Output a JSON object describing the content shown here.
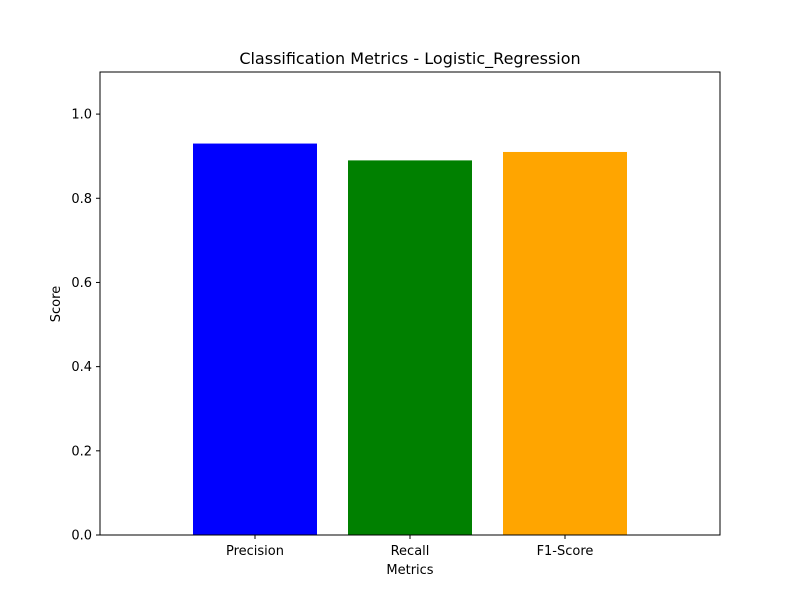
{
  "chart_data": {
    "type": "bar",
    "title": "Classification Metrics - Logistic_Regression",
    "xlabel": "Metrics",
    "ylabel": "Score",
    "categories": [
      "Precision",
      "Recall",
      "F1-Score"
    ],
    "values": [
      0.93,
      0.89,
      0.91
    ],
    "colors": [
      "#0000ff",
      "#008000",
      "#ffa500"
    ],
    "ylim": [
      0,
      1.1
    ],
    "yticks": [
      0.0,
      0.2,
      0.4,
      0.6,
      0.8,
      1.0
    ],
    "ytick_labels": [
      "0.0",
      "0.2",
      "0.4",
      "0.6",
      "0.8",
      "1.0"
    ],
    "grid": false,
    "legend": "none"
  }
}
